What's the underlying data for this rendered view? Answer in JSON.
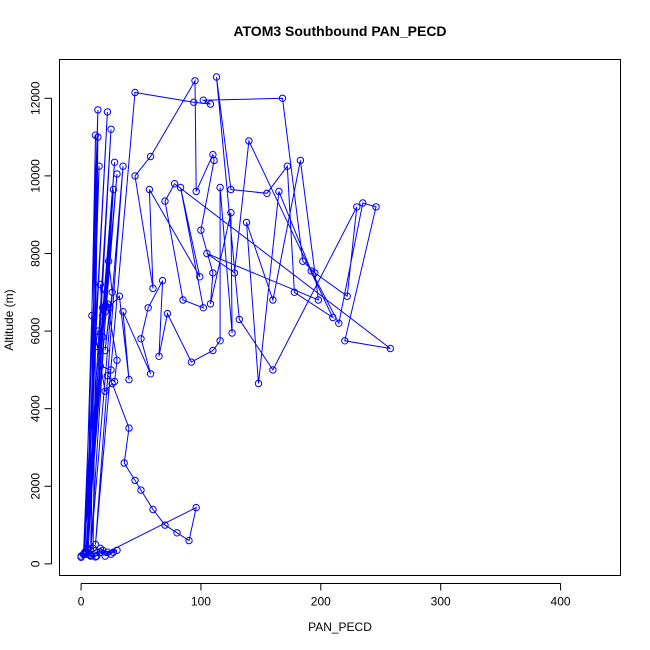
{
  "chart_data": {
    "type": "line",
    "title": "ATOM3 Southbound PAN_PECD",
    "xlabel": "PAN_PECD",
    "ylabel": "Altitude (m)",
    "xlim": [
      -18,
      450
    ],
    "ylim": [
      -300,
      13000
    ],
    "xticks": [
      0,
      100,
      200,
      300,
      400
    ],
    "yticks": [
      0,
      2000,
      4000,
      6000,
      8000,
      10000,
      12000
    ],
    "grid": false,
    "legend": "none",
    "color": "#0000ff",
    "series": [
      {
        "values": [
          [
            0,
            200
          ],
          [
            10,
            400
          ],
          [
            14,
            11000
          ],
          [
            8,
            220
          ],
          [
            12,
            11050
          ],
          [
            5,
            300
          ],
          [
            15,
            10250
          ],
          [
            2,
            250
          ],
          [
            22,
            11650
          ],
          [
            3,
            300
          ],
          [
            14,
            11700
          ],
          [
            6,
            400
          ],
          [
            25,
            11200
          ],
          [
            4,
            300
          ],
          [
            28,
            10350
          ],
          [
            2,
            250
          ],
          [
            30,
            10050
          ],
          [
            5,
            400
          ],
          [
            27,
            9650
          ],
          [
            8,
            350
          ],
          [
            35,
            10250
          ],
          [
            12,
            500
          ],
          [
            45,
            12150
          ],
          [
            94,
            11900
          ],
          [
            108,
            11850
          ],
          [
            102,
            11950
          ],
          [
            168,
            12000
          ],
          [
            185,
            7800
          ],
          [
            195,
            7500
          ],
          [
            222,
            6900
          ],
          [
            230,
            9200
          ],
          [
            160,
            5000
          ],
          [
            132,
            6300
          ],
          [
            113,
            12550
          ],
          [
            125,
            9650
          ],
          [
            155,
            9550
          ],
          [
            172,
            10250
          ],
          [
            178,
            7000
          ],
          [
            210,
            6350
          ],
          [
            140,
            10900
          ],
          [
            128,
            7500
          ],
          [
            105,
            8000
          ],
          [
            198,
            6800
          ],
          [
            183,
            10400
          ],
          [
            160,
            6800
          ],
          [
            138,
            8800
          ],
          [
            148,
            4650
          ],
          [
            165,
            9600
          ],
          [
            192,
            7550
          ],
          [
            215,
            6200
          ],
          [
            235,
            9300
          ],
          [
            246,
            9200
          ],
          [
            220,
            5750
          ],
          [
            258,
            5550
          ],
          [
            78,
            9800
          ],
          [
            70,
            9350
          ],
          [
            85,
            6800
          ],
          [
            102,
            6600
          ],
          [
            83,
            9700
          ],
          [
            99,
            7400
          ],
          [
            57,
            9650
          ],
          [
            60,
            7100
          ],
          [
            45,
            10000
          ],
          [
            58,
            10500
          ],
          [
            95,
            12450
          ],
          [
            96,
            9600
          ],
          [
            110,
            10550
          ],
          [
            111,
            10400
          ],
          [
            100,
            8600
          ],
          [
            110,
            7500
          ],
          [
            108,
            6700
          ],
          [
            125,
            9050
          ],
          [
            126,
            5950
          ],
          [
            116,
            9700
          ],
          [
            116,
            5750
          ],
          [
            110,
            5500
          ],
          [
            92,
            5200
          ],
          [
            72,
            6450
          ],
          [
            65,
            5350
          ],
          [
            68,
            7300
          ],
          [
            56,
            6600
          ],
          [
            50,
            5800
          ],
          [
            58,
            4900
          ],
          [
            35,
            6500
          ],
          [
            40,
            4750
          ],
          [
            32,
            6900
          ],
          [
            20,
            6500
          ],
          [
            18,
            6600
          ],
          [
            23,
            7800
          ],
          [
            26,
            7000
          ],
          [
            20,
            5500
          ],
          [
            24,
            6600
          ],
          [
            16,
            7200
          ],
          [
            18,
            6400
          ],
          [
            22,
            6700
          ],
          [
            30,
            5250
          ],
          [
            28,
            4700
          ],
          [
            22,
            4850
          ],
          [
            25,
            5000
          ],
          [
            16,
            5100
          ],
          [
            18,
            5850
          ],
          [
            14,
            6000
          ],
          [
            12,
            5600
          ],
          [
            9,
            6400
          ],
          [
            20,
            4450
          ],
          [
            26,
            4650
          ],
          [
            40,
            3500
          ],
          [
            36,
            2600
          ],
          [
            45,
            2150
          ],
          [
            50,
            1900
          ],
          [
            60,
            1400
          ],
          [
            70,
            1000
          ],
          [
            80,
            800
          ],
          [
            90,
            600
          ],
          [
            96,
            1450
          ],
          [
            22,
            300
          ],
          [
            16,
            400
          ],
          [
            3,
            250
          ],
          [
            12,
            180
          ],
          [
            0,
            170
          ],
          [
            18,
            350
          ],
          [
            8,
            200
          ],
          [
            25,
            250
          ],
          [
            16,
            300
          ],
          [
            30,
            350
          ],
          [
            20,
            200
          ],
          [
            27,
            300
          ],
          [
            4,
            250
          ],
          [
            13,
            200
          ]
        ]
      }
    ]
  }
}
